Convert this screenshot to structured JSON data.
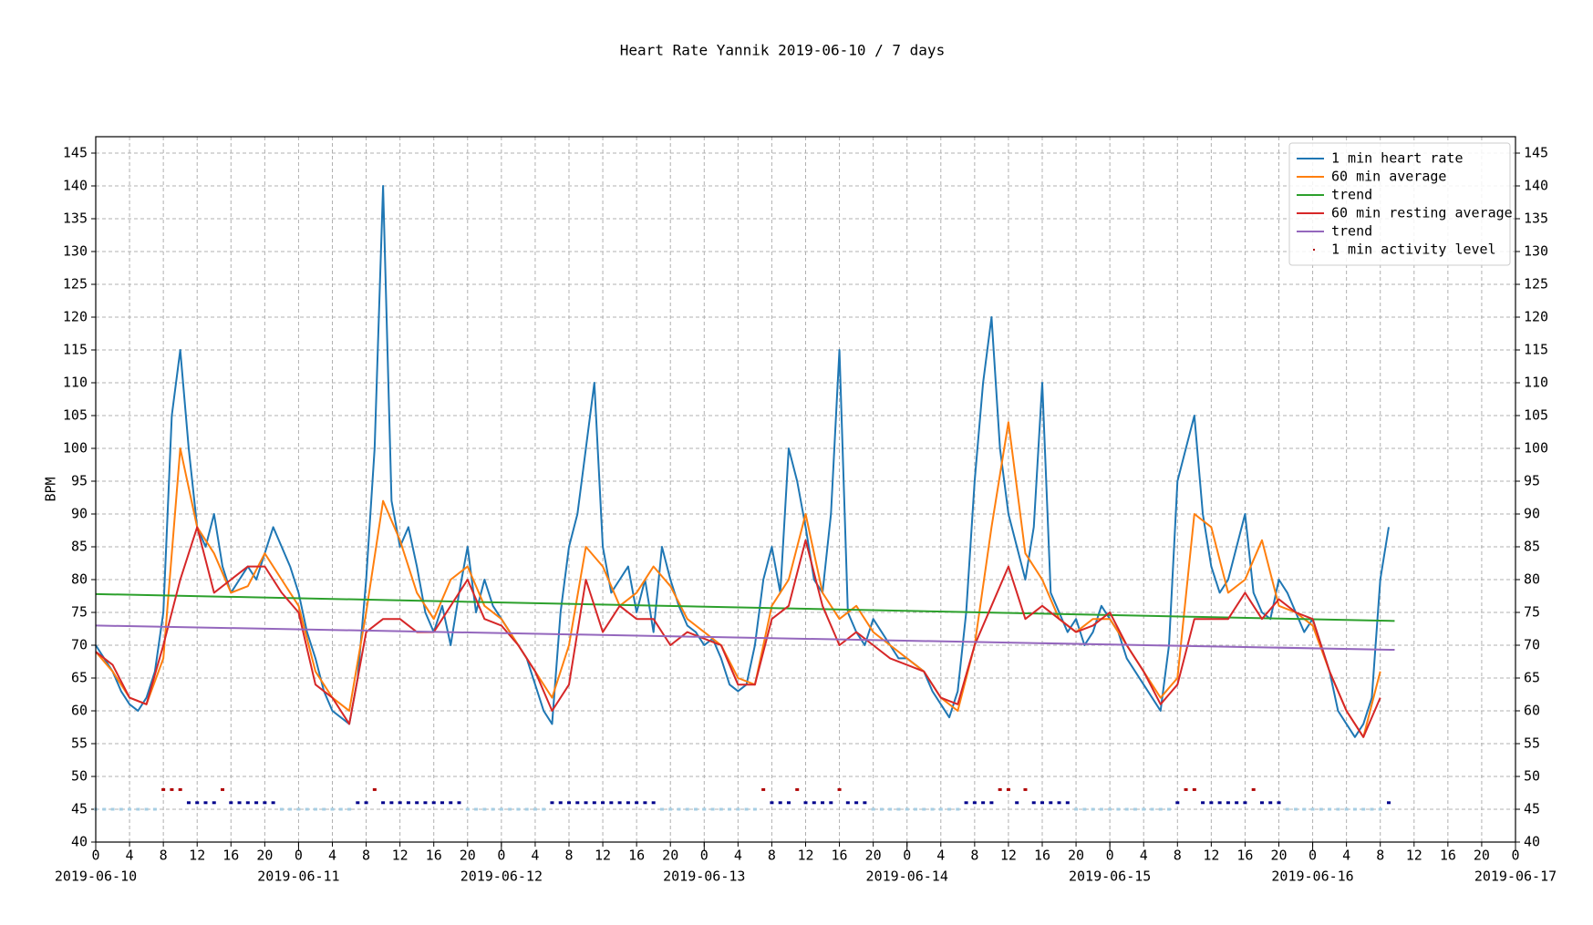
{
  "chart_data": {
    "type": "line",
    "title": "Heart Rate Yannik 2019-06-10 / 7 days",
    "ylabel": "BPM",
    "xlim": [
      0,
      168
    ],
    "ylim": [
      40,
      147.5
    ],
    "yticks": [
      40,
      45,
      50,
      55,
      60,
      65,
      70,
      75,
      80,
      85,
      90,
      95,
      100,
      105,
      110,
      115,
      120,
      125,
      130,
      135,
      140,
      145
    ],
    "xticks": [
      0,
      4,
      8,
      12,
      16,
      20,
      {
        "value": 24,
        "label": "0"
      },
      {
        "value": 28,
        "label": "4"
      },
      {
        "value": 32,
        "label": "8"
      },
      {
        "value": 36,
        "label": "12"
      },
      {
        "value": 40,
        "label": "16"
      },
      {
        "value": 44,
        "label": "20"
      },
      {
        "value": 48,
        "label": "0"
      },
      {
        "value": 52,
        "label": "4"
      },
      {
        "value": 56,
        "label": "8"
      },
      {
        "value": 60,
        "label": "12"
      },
      {
        "value": 64,
        "label": "16"
      },
      {
        "value": 68,
        "label": "20"
      },
      {
        "value": 72,
        "label": "0"
      },
      {
        "value": 76,
        "label": "4"
      },
      {
        "value": 80,
        "label": "8"
      },
      {
        "value": 84,
        "label": "12"
      },
      {
        "value": 88,
        "label": "16"
      },
      {
        "value": 92,
        "label": "20"
      },
      {
        "value": 96,
        "label": "0"
      },
      {
        "value": 100,
        "label": "4"
      },
      {
        "value": 104,
        "label": "8"
      },
      {
        "value": 108,
        "label": "12"
      },
      {
        "value": 112,
        "label": "16"
      },
      {
        "value": 116,
        "label": "20"
      },
      {
        "value": 120,
        "label": "0"
      },
      {
        "value": 124,
        "label": "4"
      },
      {
        "value": 128,
        "label": "8"
      },
      {
        "value": 132,
        "label": "12"
      },
      {
        "value": 136,
        "label": "16"
      },
      {
        "value": 140,
        "label": "20"
      },
      {
        "value": 144,
        "label": "0"
      },
      {
        "value": 148,
        "label": "4"
      },
      {
        "value": 152,
        "label": "8"
      },
      {
        "value": 156,
        "label": "12"
      },
      {
        "value": 160,
        "label": "16"
      },
      {
        "value": 164,
        "label": "20"
      },
      {
        "value": 168,
        "label": "0"
      }
    ],
    "date_ticks": [
      {
        "value": 0,
        "label": "2019-06-10"
      },
      {
        "value": 24,
        "label": "2019-06-11"
      },
      {
        "value": 48,
        "label": "2019-06-12"
      },
      {
        "value": 72,
        "label": "2019-06-13"
      },
      {
        "value": 96,
        "label": "2019-06-14"
      },
      {
        "value": 120,
        "label": "2019-06-15"
      },
      {
        "value": 144,
        "label": "2019-06-16"
      },
      {
        "value": 168,
        "label": "2019-06-17"
      }
    ],
    "grid": true,
    "legend": "upper right",
    "x": [
      0,
      1,
      2,
      3,
      4,
      5,
      6,
      7,
      8,
      9,
      10,
      11,
      12,
      13,
      14,
      15,
      16,
      17,
      18,
      19,
      20,
      21,
      22,
      23,
      24,
      25,
      26,
      27,
      28,
      29,
      30,
      31,
      32,
      33,
      34,
      35,
      36,
      37,
      38,
      39,
      40,
      41,
      42,
      43,
      44,
      45,
      46,
      47,
      48,
      49,
      50,
      51,
      52,
      53,
      54,
      55,
      56,
      57,
      58,
      59,
      60,
      61,
      62,
      63,
      64,
      65,
      66,
      67,
      68,
      69,
      70,
      71,
      72,
      73,
      74,
      75,
      76,
      77,
      78,
      79,
      80,
      81,
      82,
      83,
      84,
      85,
      86,
      87,
      88,
      89,
      90,
      91,
      92,
      93,
      94,
      95,
      96,
      97,
      98,
      99,
      100,
      101,
      102,
      103,
      104,
      105,
      106,
      107,
      108,
      109,
      110,
      111,
      112,
      113,
      114,
      115,
      116,
      117,
      118,
      119,
      120,
      121,
      122,
      123,
      124,
      125,
      126,
      127,
      128,
      129,
      130,
      131,
      132,
      133,
      134,
      135,
      136,
      137,
      138,
      139,
      140,
      141,
      142,
      143,
      144,
      145,
      146,
      147,
      148,
      149,
      150,
      151,
      152,
      153
    ],
    "level_colors": {
      "45": "#a6cee3",
      "46": "#00008b",
      "48": "#b00000"
    },
    "series": [
      {
        "name": "1 min heart rate",
        "color": "#1f77b4",
        "values": [
          70,
          68,
          66,
          63,
          61,
          60,
          62,
          66,
          75,
          105,
          115,
          100,
          88,
          85,
          90,
          82,
          78,
          80,
          82,
          80,
          84,
          88,
          85,
          82,
          78,
          72,
          68,
          63,
          60,
          59,
          58,
          65,
          80,
          100,
          140,
          92,
          85,
          88,
          82,
          75,
          72,
          76,
          70,
          78,
          85,
          75,
          80,
          76,
          74,
          72,
          70,
          68,
          64,
          60,
          58,
          75,
          85,
          90,
          100,
          110,
          85,
          78,
          80,
          82,
          75,
          80,
          72,
          85,
          80,
          76,
          73,
          72,
          70,
          71,
          68,
          64,
          63,
          64,
          70,
          80,
          85,
          78,
          100,
          95,
          88,
          80,
          78,
          90,
          115,
          75,
          72,
          70,
          74,
          72,
          70,
          68,
          68,
          67,
          66,
          63,
          61,
          59,
          63,
          75,
          95,
          110,
          120,
          100,
          90,
          85,
          80,
          88,
          110,
          78,
          75,
          72,
          74,
          70,
          72,
          76,
          74,
          72,
          68,
          66,
          64,
          62,
          60,
          70,
          95,
          100,
          105,
          90,
          82,
          78,
          80,
          85,
          90,
          78,
          75,
          74,
          80,
          78,
          75,
          72,
          74,
          70,
          66,
          60,
          58,
          56,
          58,
          62,
          80,
          88
        ]
      },
      {
        "name": "60 min average",
        "color": "#ff7f0e",
        "x": [
          0,
          2,
          4,
          6,
          8,
          10,
          12,
          14,
          16,
          18,
          20,
          22,
          24,
          26,
          28,
          30,
          32,
          34,
          36,
          38,
          40,
          42,
          44,
          46,
          48,
          50,
          52,
          54,
          56,
          58,
          60,
          62,
          64,
          66,
          68,
          70,
          72,
          74,
          76,
          78,
          80,
          82,
          84,
          86,
          88,
          90,
          92,
          94,
          96,
          98,
          100,
          102,
          104,
          106,
          108,
          110,
          112,
          114,
          116,
          118,
          120,
          122,
          124,
          126,
          128,
          130,
          132,
          134,
          136,
          138,
          140,
          142,
          144,
          146,
          148,
          150,
          152
        ],
        "values": [
          69,
          66,
          62,
          61,
          68,
          100,
          88,
          84,
          78,
          79,
          84,
          80,
          76,
          66,
          62,
          60,
          75,
          92,
          86,
          78,
          74,
          80,
          82,
          76,
          74,
          70,
          66,
          62,
          70,
          85,
          82,
          76,
          78,
          82,
          79,
          74,
          72,
          70,
          65,
          64,
          76,
          80,
          90,
          78,
          74,
          76,
          72,
          70,
          68,
          66,
          62,
          60,
          70,
          88,
          104,
          84,
          80,
          74,
          72,
          74,
          74,
          70,
          66,
          62,
          65,
          90,
          88,
          78,
          80,
          86,
          76,
          75,
          73,
          66,
          60,
          56,
          66
        ]
      },
      {
        "name": "trend",
        "color": "#2ca02c",
        "x": [
          0,
          153.7
        ],
        "values": [
          77.8,
          73.7
        ]
      },
      {
        "name": "60 min resting average",
        "color": "#d62728",
        "x": [
          0,
          2,
          4,
          6,
          8,
          10,
          12,
          14,
          16,
          18,
          20,
          22,
          24,
          26,
          28,
          30,
          32,
          34,
          36,
          38,
          40,
          42,
          44,
          46,
          48,
          50,
          52,
          54,
          56,
          58,
          60,
          62,
          64,
          66,
          68,
          70,
          72,
          74,
          76,
          78,
          80,
          82,
          84,
          86,
          88,
          90,
          92,
          94,
          96,
          98,
          100,
          102,
          104,
          106,
          108,
          110,
          112,
          114,
          116,
          118,
          120,
          122,
          124,
          126,
          128,
          130,
          132,
          134,
          136,
          138,
          140,
          142,
          144,
          146,
          148,
          150,
          152
        ],
        "values": [
          69,
          67,
          62,
          61,
          70,
          80,
          88,
          78,
          80,
          82,
          82,
          78,
          75,
          64,
          62,
          58,
          72,
          74,
          74,
          72,
          72,
          76,
          80,
          74,
          73,
          70,
          66,
          60,
          64,
          80,
          72,
          76,
          74,
          74,
          70,
          72,
          71,
          70,
          64,
          64,
          74,
          76,
          86,
          76,
          70,
          72,
          70,
          68,
          67,
          66,
          62,
          61,
          70,
          76,
          82,
          74,
          76,
          74,
          72,
          73,
          75,
          70,
          66,
          61,
          64,
          74,
          74,
          74,
          78,
          74,
          77,
          75,
          74,
          66,
          60,
          56,
          62
        ]
      },
      {
        "name": "trend",
        "color": "#9467bd",
        "x": [
          0,
          153.7
        ],
        "values": [
          73.0,
          69.3
        ]
      },
      {
        "name": "1 min activity level",
        "kind": "scatter",
        "values": [
          45,
          45,
          45,
          45,
          45,
          45,
          45,
          45,
          48,
          48,
          48,
          46,
          46,
          46,
          46,
          48,
          46,
          46,
          46,
          46,
          46,
          46,
          45,
          45,
          45,
          45,
          45,
          45,
          45,
          45,
          45,
          46,
          46,
          48,
          46,
          46,
          46,
          46,
          46,
          46,
          46,
          46,
          46,
          46,
          45,
          45,
          45,
          45,
          45,
          45,
          45,
          45,
          45,
          45,
          46,
          46,
          46,
          46,
          46,
          46,
          46,
          46,
          46,
          46,
          46,
          46,
          46,
          45,
          45,
          45,
          45,
          45,
          45,
          45,
          45,
          45,
          45,
          45,
          45,
          48,
          46,
          46,
          46,
          48,
          46,
          46,
          46,
          46,
          48,
          46,
          46,
          46,
          45,
          45,
          45,
          45,
          45,
          45,
          45,
          45,
          45,
          45,
          45,
          46,
          46,
          46,
          46,
          48,
          48,
          46,
          48,
          46,
          46,
          46,
          46,
          46,
          45,
          45,
          45,
          45,
          45,
          45,
          45,
          45,
          45,
          45,
          45,
          45,
          46,
          48,
          48,
          46,
          46,
          46,
          46,
          46,
          46,
          48,
          46,
          46,
          46,
          45,
          45,
          45,
          45,
          45,
          45,
          45,
          45,
          45,
          45,
          45,
          45,
          46
        ]
      }
    ]
  }
}
